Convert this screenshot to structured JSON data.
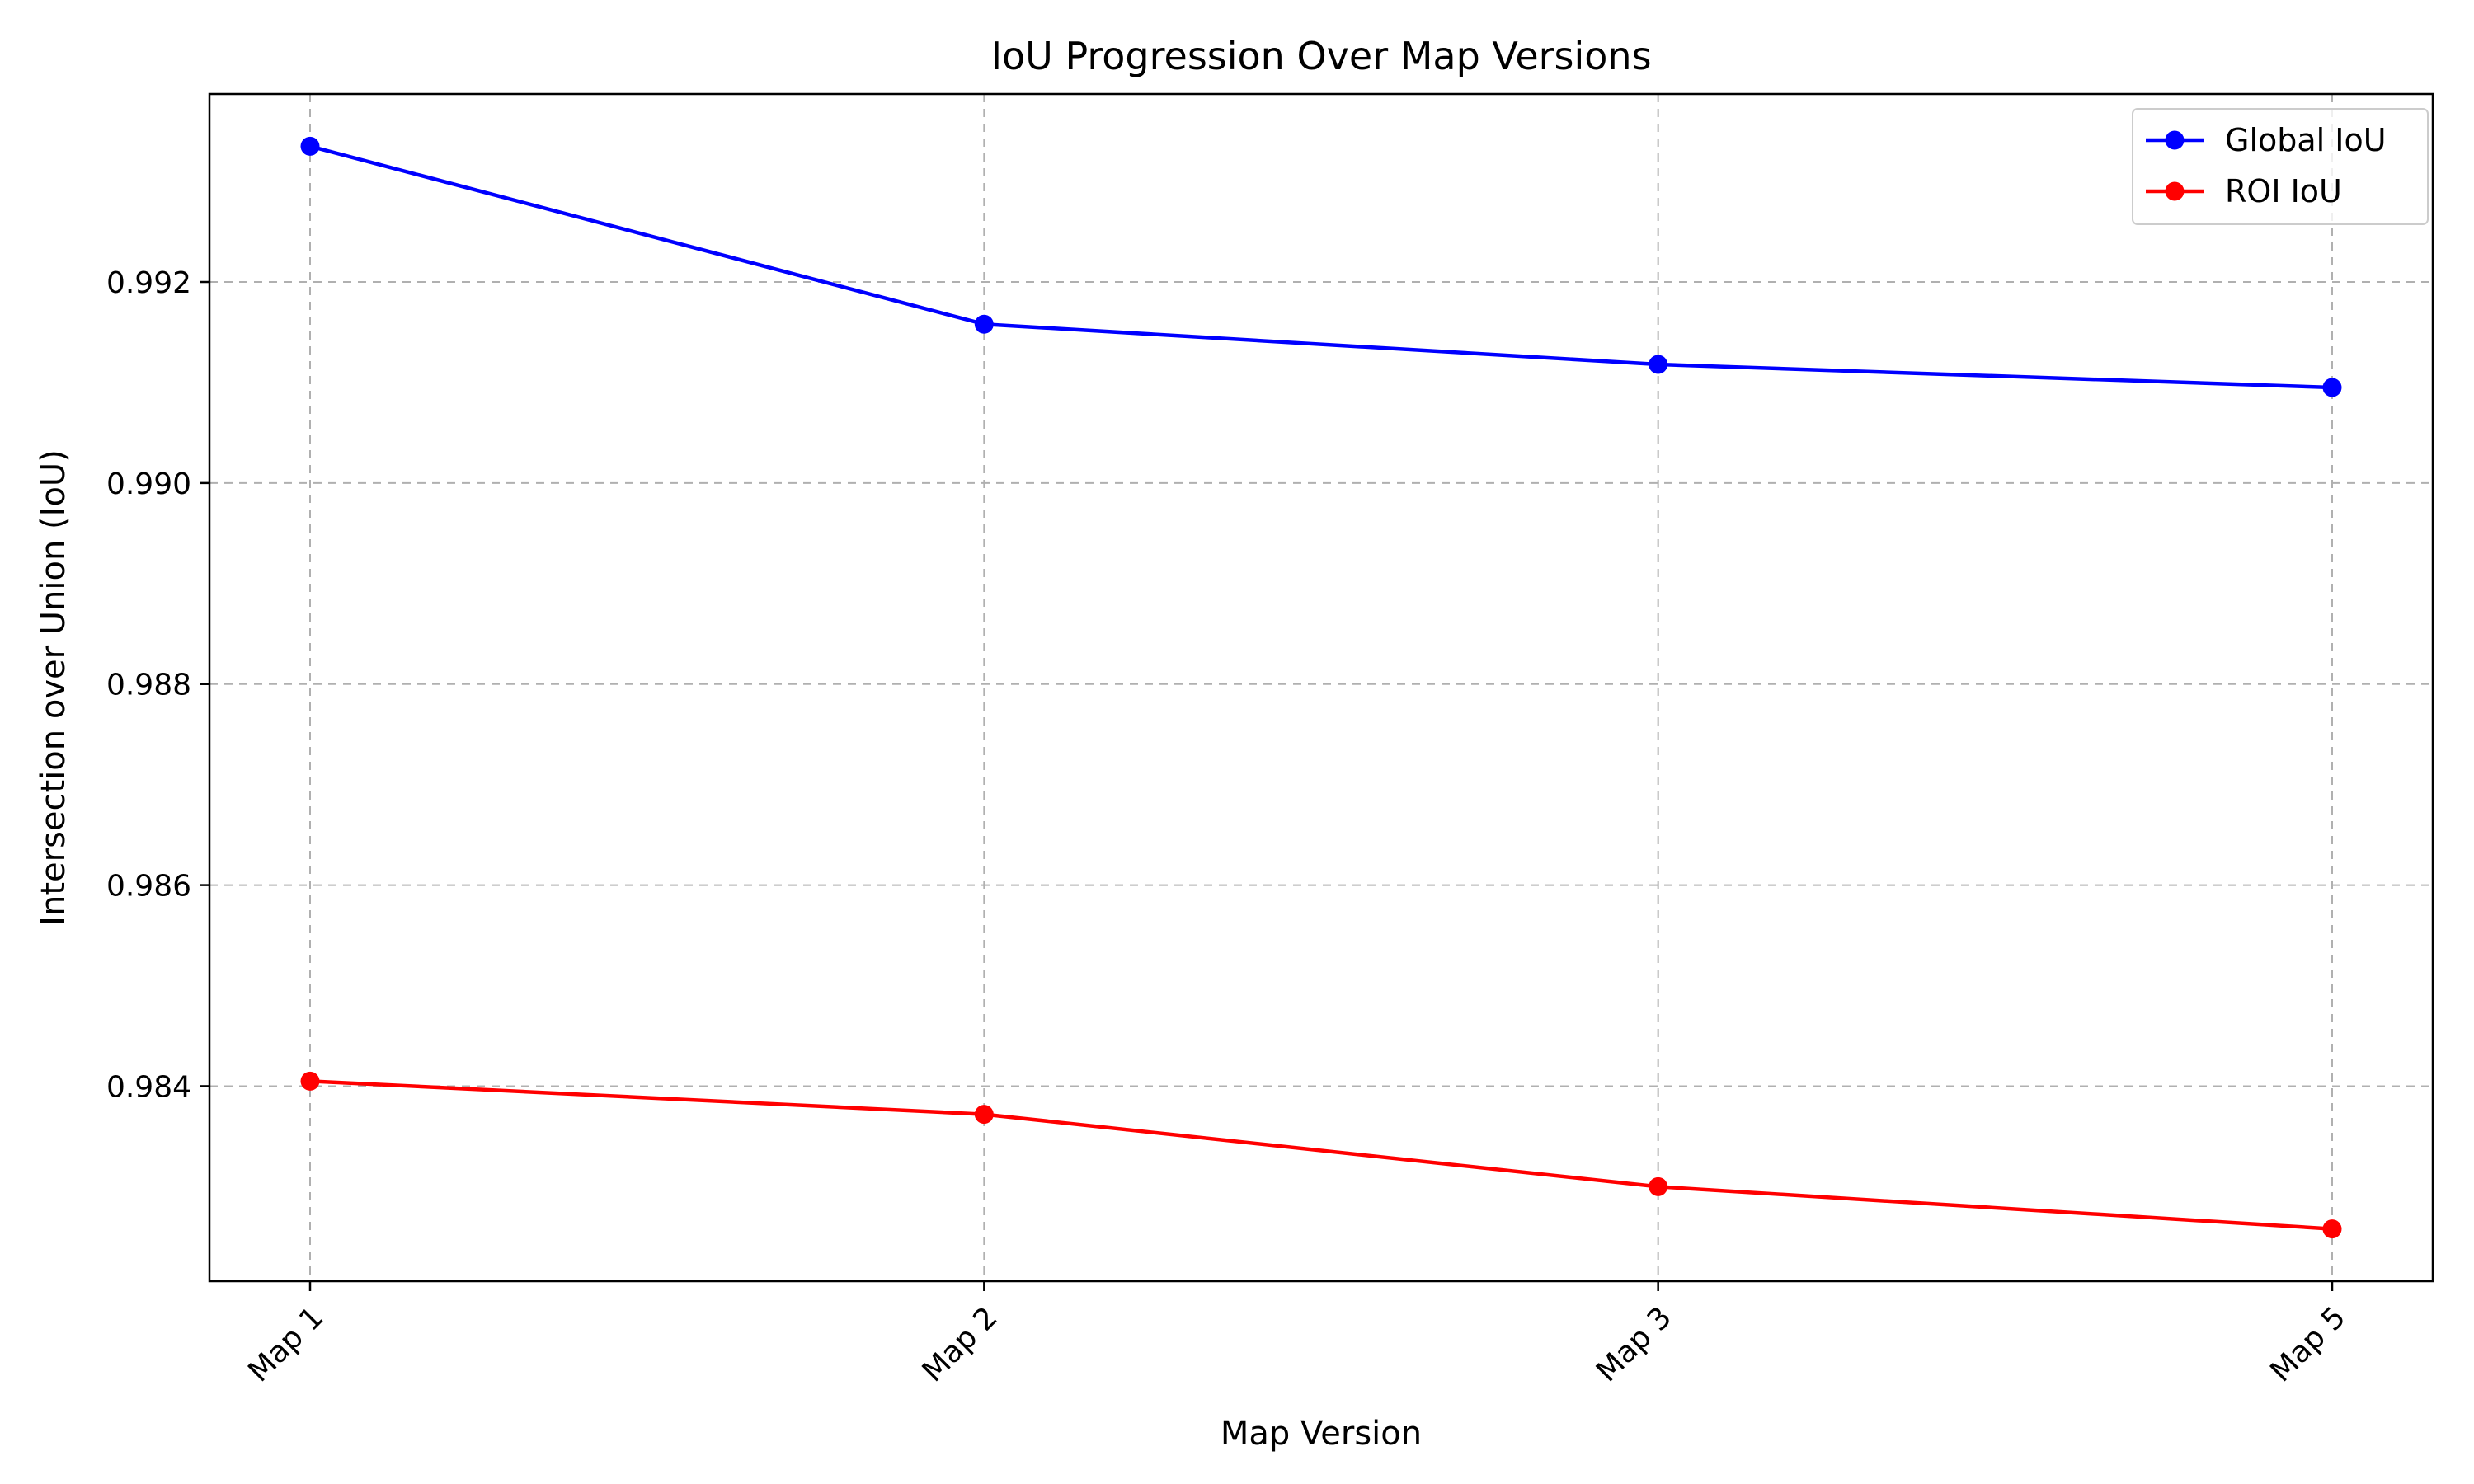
{
  "chart_data": {
    "type": "line",
    "title": "IoU Progression Over Map Versions",
    "xlabel": "Map Version",
    "ylabel": "Intersection over Union (IoU)",
    "categories": [
      "Map 1",
      "Map 2",
      "Map 3",
      "Map 5"
    ],
    "ylim": [
      0.98206,
      0.99387
    ],
    "yticks": [
      0.984,
      0.986,
      0.988,
      0.99,
      0.992
    ],
    "ytick_labels": [
      "0.984",
      "0.986",
      "0.988",
      "0.990",
      "0.992"
    ],
    "grid": true,
    "legend_position": "top-right",
    "series": [
      {
        "name": "Global IoU",
        "color": "#0000ff",
        "marker": "circle",
        "values": [
          0.99335,
          0.99158,
          0.99118,
          0.99095
        ]
      },
      {
        "name": "ROI IoU",
        "color": "#ff0000",
        "marker": "circle",
        "values": [
          0.98405,
          0.98372,
          0.983,
          0.98258
        ]
      }
    ]
  }
}
